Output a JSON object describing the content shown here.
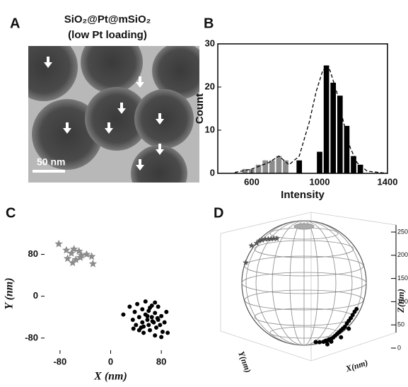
{
  "panel_labels": [
    "A",
    "B",
    "C",
    "D"
  ],
  "image": {
    "title_line1": "SiO₂@Pt@mSiO₂",
    "title_line2": "(low Pt loading)",
    "scale_bar": "50 nm"
  },
  "chart_data": [
    {
      "type": "bar",
      "xlabel": "Intensity",
      "ylabel": "Count",
      "xlim": [
        400,
        1400
      ],
      "xticks": [
        600,
        1000,
        1400
      ],
      "ylim": [
        0,
        30
      ],
      "yticks": [
        0,
        10,
        20,
        30
      ],
      "series": [
        {
          "color": "#8c8c8c",
          "x": [
            560,
            600,
            640,
            680,
            720,
            760,
            800
          ],
          "values": [
            1,
            1,
            2,
            3,
            3,
            4,
            3
          ]
        },
        {
          "color": "#000000",
          "x": [
            880,
            1000,
            1040,
            1080,
            1120,
            1160,
            1200,
            1240
          ],
          "values": [
            3,
            5,
            25,
            21,
            18,
            11,
            4,
            2
          ]
        },
        {
          "type": "line",
          "line_style": "dashed",
          "color": "#000000",
          "x": [
            500,
            600,
            700,
            760,
            820,
            880,
            940,
            980,
            1020,
            1060,
            1100,
            1140,
            1180,
            1220,
            1280,
            1400
          ],
          "values": [
            0.2,
            1,
            2.5,
            4,
            2,
            4,
            12,
            19,
            24,
            24,
            19,
            12,
            6,
            2.5,
            0.5,
            0
          ]
        }
      ]
    },
    {
      "type": "scatter",
      "xlabel": "X (nm)",
      "ylabel": "Y (nm)",
      "xlim": [
        -110,
        110
      ],
      "xticks": [
        -80,
        0,
        80
      ],
      "ylim": [
        -110,
        120
      ],
      "yticks": [
        80,
        0,
        -80
      ],
      "series": [
        {
          "marker": "star",
          "color": "#8c8c8c",
          "x": [
            -82,
            -70,
            -62,
            -58,
            -50,
            -46,
            -68,
            -55,
            -38,
            -30,
            -28,
            -60,
            -48
          ],
          "y": [
            100,
            88,
            82,
            90,
            86,
            78,
            72,
            70,
            80,
            76,
            62,
            64,
            74
          ]
        },
        {
          "marker": "circle",
          "color": "#000000",
          "x": [
            20,
            30,
            35,
            38,
            40,
            42,
            45,
            48,
            50,
            50,
            52,
            55,
            55,
            58,
            60,
            60,
            62,
            65,
            65,
            68,
            70,
            70,
            72,
            75,
            75,
            78,
            80,
            82,
            85,
            88,
            90,
            45,
            58,
            66,
            74,
            52,
            62,
            80,
            36,
            70
          ],
          "y": [
            -35,
            -20,
            -45,
            -30,
            -55,
            -15,
            -40,
            -60,
            -25,
            -50,
            -70,
            -35,
            -10,
            -45,
            -55,
            -28,
            -65,
            -40,
            -18,
            -50,
            -75,
            -32,
            -60,
            -45,
            -20,
            -55,
            -38,
            -68,
            -50,
            -30,
            -70,
            -65,
            -38,
            -48,
            -42,
            -58,
            -22,
            -78,
            -62,
            -12
          ]
        }
      ]
    },
    {
      "type": "scatter3d",
      "xlabel": "X(nm)",
      "ylabel": "Y(nm)",
      "zlabel": "Z(nm)",
      "zlim": [
        0,
        250
      ],
      "zticks": [
        0,
        50,
        100,
        150,
        200,
        250
      ],
      "series": [
        {
          "marker": "star",
          "color": "#555555",
          "x": [
            -150,
            -135,
            -122,
            -115,
            -108,
            -100,
            -92,
            -85,
            -78,
            -70
          ],
          "z": [
            150,
            190,
            198,
            205,
            208,
            212,
            214,
            216,
            218,
            220
          ]
        },
        {
          "marker": "circle",
          "color": "#000000",
          "x": [
            30,
            40,
            50,
            55,
            60,
            65,
            70,
            75,
            80,
            85,
            90,
            95,
            100,
            105,
            110,
            115,
            120,
            125,
            130,
            135,
            70,
            95,
            115,
            60
          ],
          "z": [
            20,
            22,
            25,
            28,
            30,
            34,
            36,
            40,
            45,
            50,
            55,
            60,
            65,
            70,
            78,
            85,
            92,
            100,
            108,
            115,
            30,
            45,
            68,
            22
          ]
        }
      ]
    }
  ]
}
